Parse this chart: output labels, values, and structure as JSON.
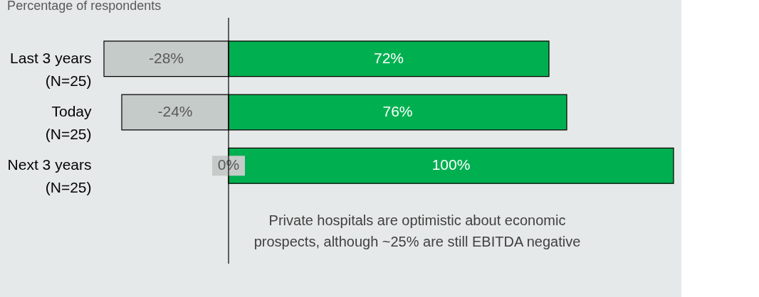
{
  "chart_data": {
    "type": "bar",
    "orientation": "horizontal",
    "stacked": true,
    "title": "Percentage of respondents",
    "categories": [
      "Last 3 years\n(N=25)",
      "Today\n(N=25)",
      "Next 3 years\n(N=25)"
    ],
    "series": [
      {
        "color": "#c5cbc9",
        "values": [
          -28,
          -24,
          0
        ],
        "value_labels": [
          "-28%",
          "-24%",
          "0%"
        ]
      },
      {
        "color": "#00b050",
        "values": [
          72,
          76,
          100
        ],
        "value_labels": [
          "72%",
          "76%",
          "100%"
        ]
      }
    ],
    "ref_lines": [
      {
        "axis": "x",
        "value": 0,
        "color": "#000000"
      }
    ],
    "annotations": [
      "Private hospitals are optimistic about economic prospects, although ~25% are still EBITDA negative"
    ],
    "grid": false
  }
}
